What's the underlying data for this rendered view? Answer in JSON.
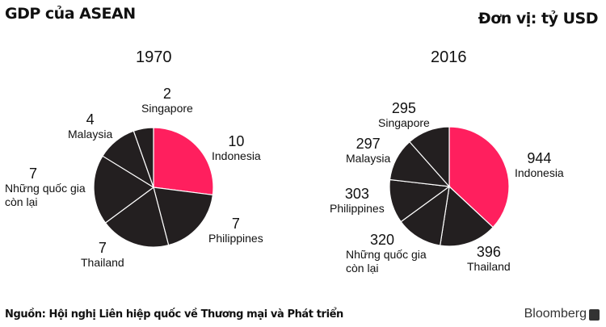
{
  "header": {
    "title": "GDP của ASEAN",
    "unit": "Đơn vị: tỷ USD"
  },
  "footer": {
    "source": "Nguồn: Hội nghị Liên hiệp quốc về Thương mại và Phát triển",
    "brand": "Bloomberg"
  },
  "colors": {
    "highlight": "#ff1f5e",
    "other": "#231f20",
    "divider": "#ffffff"
  },
  "chart_data": [
    {
      "type": "pie",
      "title": "1970",
      "unit": "tỷ USD",
      "slices": [
        {
          "label": "Indonesia",
          "value": 10,
          "value_label": "10"
        },
        {
          "label": "Philippines",
          "value": 7,
          "value_label": "7"
        },
        {
          "label": "Thailand",
          "value": 7,
          "value_label": "7"
        },
        {
          "label": "Những quốc gia còn lại",
          "value": 7,
          "value_label": "7"
        },
        {
          "label": "Malaysia",
          "value": 4,
          "value_label": "4"
        },
        {
          "label": "Singapore",
          "value": 2,
          "value_label": "2"
        }
      ]
    },
    {
      "type": "pie",
      "title": "2016",
      "unit": "tỷ USD",
      "slices": [
        {
          "label": "Indonesia",
          "value": 944,
          "value_label": "944"
        },
        {
          "label": "Thailand",
          "value": 396,
          "value_label": "396"
        },
        {
          "label": "Những quốc gia còn lại",
          "value": 320,
          "value_label": "320"
        },
        {
          "label": "Philippines",
          "value": 303,
          "value_label": "303"
        },
        {
          "label": "Malaysia",
          "value": 297,
          "value_label": "297"
        },
        {
          "label": "Singapore",
          "value": 295,
          "value_label": "295"
        }
      ]
    }
  ]
}
